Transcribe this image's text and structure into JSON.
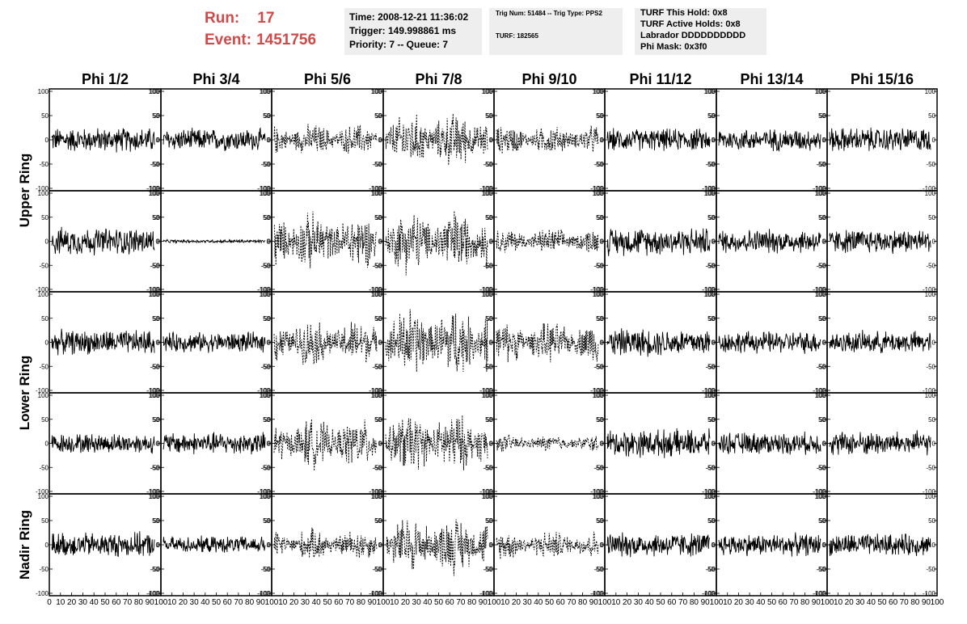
{
  "header": {
    "run_label": "Run:",
    "run_value": "17",
    "event_label": "Event:",
    "event_value": "1451756"
  },
  "info_box_1": {
    "time": "Time: 2008-12-21 11:36:02",
    "trigger": "Trigger: 149.998861 ms",
    "priority": "Priority: 7 -- Queue: 7"
  },
  "info_box_2": {
    "trig": "Trig Num: 51484 -- Trig Type: PPS2",
    "turf": "TURF: 182565"
  },
  "info_box_3": {
    "hold": "TURF This Hold: 0x8",
    "active": "TURF Active Holds: 0x8",
    "labrador": "Labrador DDDDDDDDDD",
    "mask": "Phi Mask: 0x3f0"
  },
  "chart_data": {
    "type": "line",
    "columns": [
      "Phi 1/2",
      "Phi 3/4",
      "Phi 5/6",
      "Phi 7/8",
      "Phi 9/10",
      "Phi 11/12",
      "Phi 13/14",
      "Phi 15/16"
    ],
    "row_groups": [
      {
        "label": "Upper Ring",
        "rows": 2
      },
      {
        "label": "Lower Ring",
        "rows": 2
      },
      {
        "label": "Nadir Ring",
        "rows": 1
      }
    ],
    "ylim": [
      -100,
      100
    ],
    "yticks": [
      "100",
      "50",
      "0",
      "-50",
      "-100"
    ],
    "xlim": [
      0,
      100
    ],
    "xticks_first": [
      "0",
      "10",
      "20",
      "30",
      "40",
      "50",
      "60",
      "70",
      "80",
      "90",
      "100"
    ],
    "xticks_other": [
      "10",
      "20",
      "30",
      "40",
      "50",
      "60",
      "70",
      "80",
      "90",
      "100"
    ],
    "dashed_columns": [
      2,
      3,
      4
    ],
    "amplitude": [
      [
        22,
        20,
        22,
        38,
        20,
        20,
        20,
        22
      ],
      [
        25,
        3,
        40,
        45,
        18,
        25,
        22,
        22
      ],
      [
        22,
        18,
        32,
        50,
        28,
        25,
        20,
        20
      ],
      [
        18,
        20,
        35,
        42,
        12,
        25,
        20,
        22
      ],
      [
        22,
        15,
        22,
        40,
        20,
        22,
        20,
        20
      ]
    ]
  }
}
